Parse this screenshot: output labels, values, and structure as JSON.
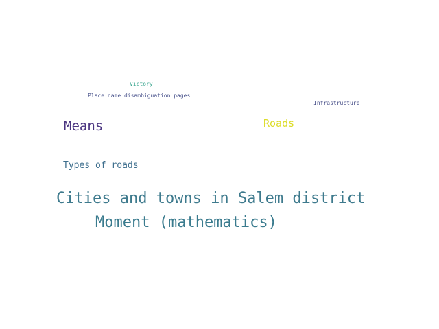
{
  "word_cloud": {
    "words": [
      {
        "key": "victory",
        "text": "Victory",
        "color": "#3aa68f"
      },
      {
        "key": "place",
        "text": "Place name disambiguation pages",
        "color": "#46508a"
      },
      {
        "key": "infrastructure",
        "text": "Infrastructure",
        "color": "#424a85"
      },
      {
        "key": "means",
        "text": "Means",
        "color": "#4a3480"
      },
      {
        "key": "roads",
        "text": "Roads",
        "color": "#dcdc28"
      },
      {
        "key": "types",
        "text": "Types of roads",
        "color": "#3d6e8d"
      },
      {
        "key": "cities",
        "text": "Cities and towns in Salem district",
        "color": "#3e7a8d"
      },
      {
        "key": "moment",
        "text": "Moment (mathematics)",
        "color": "#3a7b8e"
      }
    ]
  }
}
